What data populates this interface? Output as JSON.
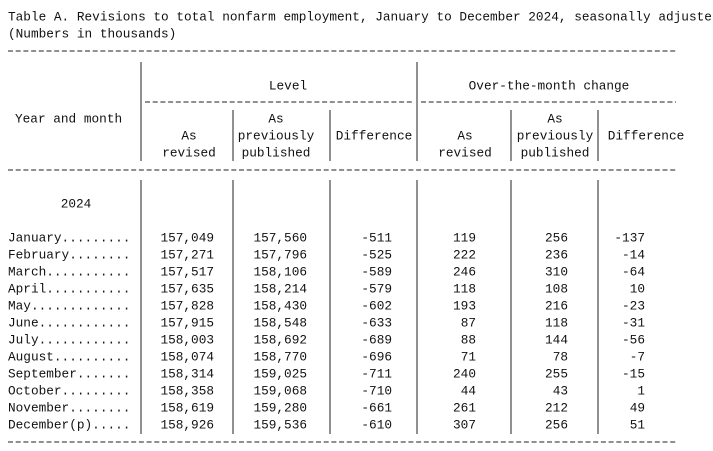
{
  "header": {
    "title": "Table A. Revisions to total nonfarm employment, January to December 2024, seasonally adjuste",
    "subtitle": "(Numbers in thousands)"
  },
  "table": {
    "row_header": "Year and month",
    "groups": [
      "Level",
      "Over-the-month change"
    ],
    "columns": [
      [
        "As",
        "revised"
      ],
      [
        "As",
        "previously",
        "published"
      ],
      [
        "Difference"
      ],
      [
        "As",
        "revised"
      ],
      [
        "As",
        "previously",
        "published"
      ],
      [
        "Difference"
      ]
    ],
    "year": "2024",
    "rows": [
      [
        "January.........",
        "157,049",
        "157,560",
        "-511",
        "119",
        "256",
        "-137"
      ],
      [
        "February........",
        "157,271",
        "157,796",
        "-525",
        "222",
        "236",
        "-14"
      ],
      [
        "March...........",
        "157,517",
        "158,106",
        "-589",
        "246",
        "310",
        "-64"
      ],
      [
        "April...........",
        "157,635",
        "158,214",
        "-579",
        "118",
        "108",
        "10"
      ],
      [
        "May.............",
        "157,828",
        "158,430",
        "-602",
        "193",
        "216",
        "-23"
      ],
      [
        "June............",
        "157,915",
        "158,548",
        "-633",
        "87",
        "118",
        "-31"
      ],
      [
        "July............",
        "158,003",
        "158,692",
        "-689",
        "88",
        "144",
        "-56"
      ],
      [
        "August..........",
        "158,074",
        "158,770",
        "-696",
        "71",
        "78",
        "-7"
      ],
      [
        "September.......",
        "158,314",
        "159,025",
        "-711",
        "240",
        "255",
        "-15"
      ],
      [
        "October.........",
        "158,358",
        "159,068",
        "-710",
        "44",
        "43",
        "1"
      ],
      [
        "November........",
        "158,619",
        "159,280",
        "-661",
        "261",
        "212",
        "49"
      ],
      [
        "December(p).....",
        "158,926",
        "159,536",
        "-610",
        "307",
        "256",
        "51"
      ]
    ]
  }
}
